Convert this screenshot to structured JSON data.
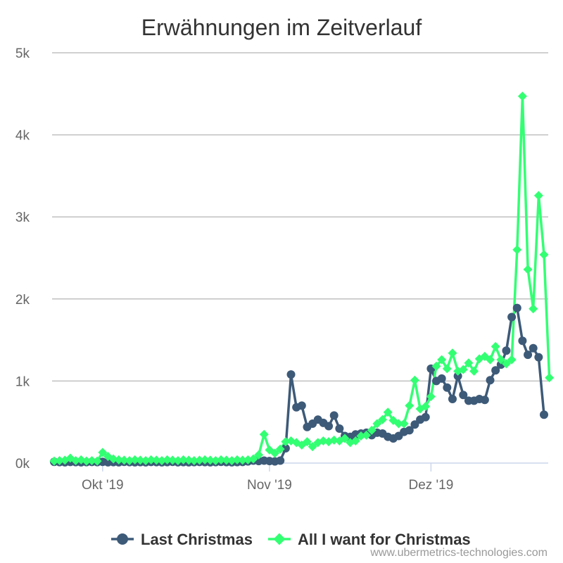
{
  "chart_data": {
    "type": "line",
    "title": "Erwähnungen im Zeitverlauf",
    "xlabel": "",
    "ylabel": "",
    "x_range": [
      "2019-09-22",
      "2019-12-22"
    ],
    "x_ticks": [
      {
        "date": "2019-10-01",
        "label": "Okt '19"
      },
      {
        "date": "2019-11-01",
        "label": "Nov '19"
      },
      {
        "date": "2019-12-01",
        "label": "Dez '19"
      }
    ],
    "ylim": [
      0,
      5000
    ],
    "y_ticks": [
      {
        "value": 0,
        "label": "0k"
      },
      {
        "value": 1000,
        "label": "1k"
      },
      {
        "value": 2000,
        "label": "2k"
      },
      {
        "value": 3000,
        "label": "3k"
      },
      {
        "value": 4000,
        "label": "4k"
      },
      {
        "value": 5000,
        "label": "5k"
      }
    ],
    "grid": true,
    "legend_position": "bottom",
    "series": [
      {
        "name": "Last Christmas",
        "color": "#3d5a78",
        "marker": "circle",
        "points": [
          [
            "2019-09-22",
            15
          ],
          [
            "2019-09-23",
            12
          ],
          [
            "2019-09-24",
            10
          ],
          [
            "2019-09-25",
            14
          ],
          [
            "2019-09-26",
            12
          ],
          [
            "2019-09-27",
            10
          ],
          [
            "2019-09-28",
            12
          ],
          [
            "2019-09-29",
            14
          ],
          [
            "2019-09-30",
            12
          ],
          [
            "2019-10-01",
            15
          ],
          [
            "2019-10-02",
            10
          ],
          [
            "2019-10-03",
            12
          ],
          [
            "2019-10-04",
            10
          ],
          [
            "2019-10-05",
            15
          ],
          [
            "2019-10-06",
            12
          ],
          [
            "2019-10-07",
            10
          ],
          [
            "2019-10-08",
            12
          ],
          [
            "2019-10-09",
            10
          ],
          [
            "2019-10-10",
            14
          ],
          [
            "2019-10-11",
            12
          ],
          [
            "2019-10-12",
            10
          ],
          [
            "2019-10-13",
            12
          ],
          [
            "2019-10-14",
            15
          ],
          [
            "2019-10-15",
            10
          ],
          [
            "2019-10-16",
            12
          ],
          [
            "2019-10-17",
            10
          ],
          [
            "2019-10-18",
            12
          ],
          [
            "2019-10-19",
            14
          ],
          [
            "2019-10-20",
            12
          ],
          [
            "2019-10-21",
            10
          ],
          [
            "2019-10-22",
            12
          ],
          [
            "2019-10-23",
            15
          ],
          [
            "2019-10-24",
            12
          ],
          [
            "2019-10-25",
            10
          ],
          [
            "2019-10-26",
            12
          ],
          [
            "2019-10-27",
            14
          ],
          [
            "2019-10-28",
            20
          ],
          [
            "2019-10-29",
            30
          ],
          [
            "2019-10-30",
            25
          ],
          [
            "2019-10-31",
            30
          ],
          [
            "2019-11-01",
            25
          ],
          [
            "2019-11-02",
            20
          ],
          [
            "2019-11-03",
            30
          ],
          [
            "2019-11-04",
            180
          ],
          [
            "2019-11-05",
            1080
          ],
          [
            "2019-11-06",
            680
          ],
          [
            "2019-11-07",
            700
          ],
          [
            "2019-11-08",
            440
          ],
          [
            "2019-11-09",
            480
          ],
          [
            "2019-11-10",
            530
          ],
          [
            "2019-11-11",
            490
          ],
          [
            "2019-11-12",
            450
          ],
          [
            "2019-11-13",
            580
          ],
          [
            "2019-11-14",
            420
          ],
          [
            "2019-11-15",
            330
          ],
          [
            "2019-11-16",
            320
          ],
          [
            "2019-11-17",
            350
          ],
          [
            "2019-11-18",
            360
          ],
          [
            "2019-11-19",
            370
          ],
          [
            "2019-11-20",
            340
          ],
          [
            "2019-11-21",
            370
          ],
          [
            "2019-11-22",
            360
          ],
          [
            "2019-11-23",
            320
          ],
          [
            "2019-11-24",
            300
          ],
          [
            "2019-11-25",
            330
          ],
          [
            "2019-11-26",
            380
          ],
          [
            "2019-11-27",
            400
          ],
          [
            "2019-11-28",
            470
          ],
          [
            "2019-11-29",
            530
          ],
          [
            "2019-11-30",
            560
          ],
          [
            "2019-12-01",
            1150
          ],
          [
            "2019-12-02",
            1000
          ],
          [
            "2019-12-03",
            1030
          ],
          [
            "2019-12-04",
            920
          ],
          [
            "2019-12-05",
            780
          ],
          [
            "2019-12-06",
            1060
          ],
          [
            "2019-12-07",
            830
          ],
          [
            "2019-12-08",
            760
          ],
          [
            "2019-12-09",
            760
          ],
          [
            "2019-12-10",
            780
          ],
          [
            "2019-12-11",
            770
          ],
          [
            "2019-12-12",
            1010
          ],
          [
            "2019-12-13",
            1130
          ],
          [
            "2019-12-14",
            1200
          ],
          [
            "2019-12-15",
            1370
          ],
          [
            "2019-12-16",
            1780
          ],
          [
            "2019-12-17",
            1890
          ],
          [
            "2019-12-18",
            1490
          ],
          [
            "2019-12-19",
            1320
          ],
          [
            "2019-12-20",
            1400
          ],
          [
            "2019-12-21",
            1290
          ],
          [
            "2019-12-22",
            590
          ]
        ]
      },
      {
        "name": "All I want for Christmas",
        "color": "#33ff73",
        "marker": "diamond",
        "points": [
          [
            "2019-09-22",
            25
          ],
          [
            "2019-09-23",
            30
          ],
          [
            "2019-09-24",
            35
          ],
          [
            "2019-09-25",
            60
          ],
          [
            "2019-09-26",
            30
          ],
          [
            "2019-09-27",
            40
          ],
          [
            "2019-09-28",
            25
          ],
          [
            "2019-09-29",
            30
          ],
          [
            "2019-09-30",
            25
          ],
          [
            "2019-10-01",
            130
          ],
          [
            "2019-10-02",
            80
          ],
          [
            "2019-10-03",
            50
          ],
          [
            "2019-10-04",
            40
          ],
          [
            "2019-10-05",
            35
          ],
          [
            "2019-10-06",
            30
          ],
          [
            "2019-10-07",
            40
          ],
          [
            "2019-10-08",
            35
          ],
          [
            "2019-10-09",
            30
          ],
          [
            "2019-10-10",
            40
          ],
          [
            "2019-10-11",
            35
          ],
          [
            "2019-10-12",
            30
          ],
          [
            "2019-10-13",
            40
          ],
          [
            "2019-10-14",
            35
          ],
          [
            "2019-10-15",
            30
          ],
          [
            "2019-10-16",
            40
          ],
          [
            "2019-10-17",
            35
          ],
          [
            "2019-10-18",
            30
          ],
          [
            "2019-10-19",
            35
          ],
          [
            "2019-10-20",
            40
          ],
          [
            "2019-10-21",
            35
          ],
          [
            "2019-10-22",
            30
          ],
          [
            "2019-10-23",
            40
          ],
          [
            "2019-10-24",
            35
          ],
          [
            "2019-10-25",
            30
          ],
          [
            "2019-10-26",
            40
          ],
          [
            "2019-10-27",
            35
          ],
          [
            "2019-10-28",
            40
          ],
          [
            "2019-10-29",
            50
          ],
          [
            "2019-10-30",
            100
          ],
          [
            "2019-10-31",
            350
          ],
          [
            "2019-11-01",
            160
          ],
          [
            "2019-11-02",
            120
          ],
          [
            "2019-11-03",
            170
          ],
          [
            "2019-11-04",
            260
          ],
          [
            "2019-11-05",
            270
          ],
          [
            "2019-11-06",
            250
          ],
          [
            "2019-11-07",
            220
          ],
          [
            "2019-11-08",
            260
          ],
          [
            "2019-11-09",
            200
          ],
          [
            "2019-11-10",
            250
          ],
          [
            "2019-11-11",
            270
          ],
          [
            "2019-11-12",
            260
          ],
          [
            "2019-11-13",
            280
          ],
          [
            "2019-11-14",
            270
          ],
          [
            "2019-11-15",
            300
          ],
          [
            "2019-11-16",
            250
          ],
          [
            "2019-11-17",
            270
          ],
          [
            "2019-11-18",
            330
          ],
          [
            "2019-11-19",
            340
          ],
          [
            "2019-11-20",
            400
          ],
          [
            "2019-11-21",
            480
          ],
          [
            "2019-11-22",
            530
          ],
          [
            "2019-11-23",
            620
          ],
          [
            "2019-11-24",
            520
          ],
          [
            "2019-11-25",
            480
          ],
          [
            "2019-11-26",
            480
          ],
          [
            "2019-11-27",
            700
          ],
          [
            "2019-11-28",
            1010
          ],
          [
            "2019-11-29",
            660
          ],
          [
            "2019-11-30",
            690
          ],
          [
            "2019-12-01",
            810
          ],
          [
            "2019-12-02",
            1180
          ],
          [
            "2019-12-03",
            1260
          ],
          [
            "2019-12-04",
            1150
          ],
          [
            "2019-12-05",
            1340
          ],
          [
            "2019-12-06",
            1120
          ],
          [
            "2019-12-07",
            1140
          ],
          [
            "2019-12-08",
            1220
          ],
          [
            "2019-12-09",
            1120
          ],
          [
            "2019-12-10",
            1270
          ],
          [
            "2019-12-11",
            1300
          ],
          [
            "2019-12-12",
            1260
          ],
          [
            "2019-12-13",
            1420
          ],
          [
            "2019-12-14",
            1260
          ],
          [
            "2019-12-15",
            1210
          ],
          [
            "2019-12-16",
            1260
          ],
          [
            "2019-12-17",
            2600
          ],
          [
            "2019-12-18",
            4470
          ],
          [
            "2019-12-19",
            2360
          ],
          [
            "2019-12-20",
            1880
          ],
          [
            "2019-12-21",
            3260
          ],
          [
            "2019-12-22",
            2540
          ],
          [
            "2019-12-23",
            1040
          ]
        ]
      }
    ]
  },
  "credit": "www.ubermetrics-technologies.com"
}
